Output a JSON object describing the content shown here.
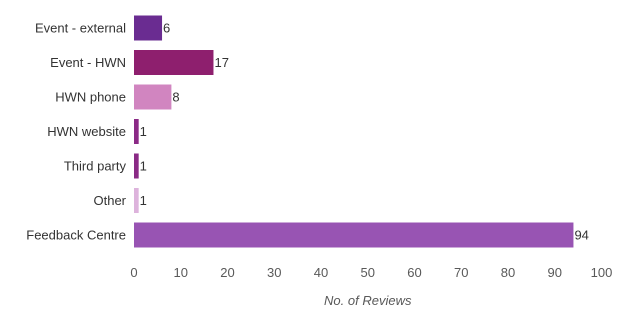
{
  "chart_data": {
    "type": "bar",
    "orientation": "horizontal",
    "title": "",
    "xlabel": "No. of Reviews",
    "ylabel": "",
    "xlim": [
      0,
      100
    ],
    "xticks": [
      "0",
      "10",
      "20",
      "30",
      "40",
      "50",
      "60",
      "70",
      "80",
      "90",
      "100"
    ],
    "grid": false,
    "legend": "none",
    "categories": [
      "Event - external",
      "Event - HWN",
      "HWN phone",
      "HWN website",
      "Third party",
      "Other",
      "Feedback Centre"
    ],
    "values": [
      6,
      17,
      8,
      1,
      1,
      1,
      94
    ],
    "value_labels": [
      "6",
      "17",
      "8",
      "1",
      "1",
      "1",
      "94"
    ],
    "colors": [
      "#6a2c91",
      "#8e1f6e",
      "#d185c0",
      "#8b2a86",
      "#8a2a85",
      "#ddb3dc",
      "#9854b3"
    ]
  }
}
